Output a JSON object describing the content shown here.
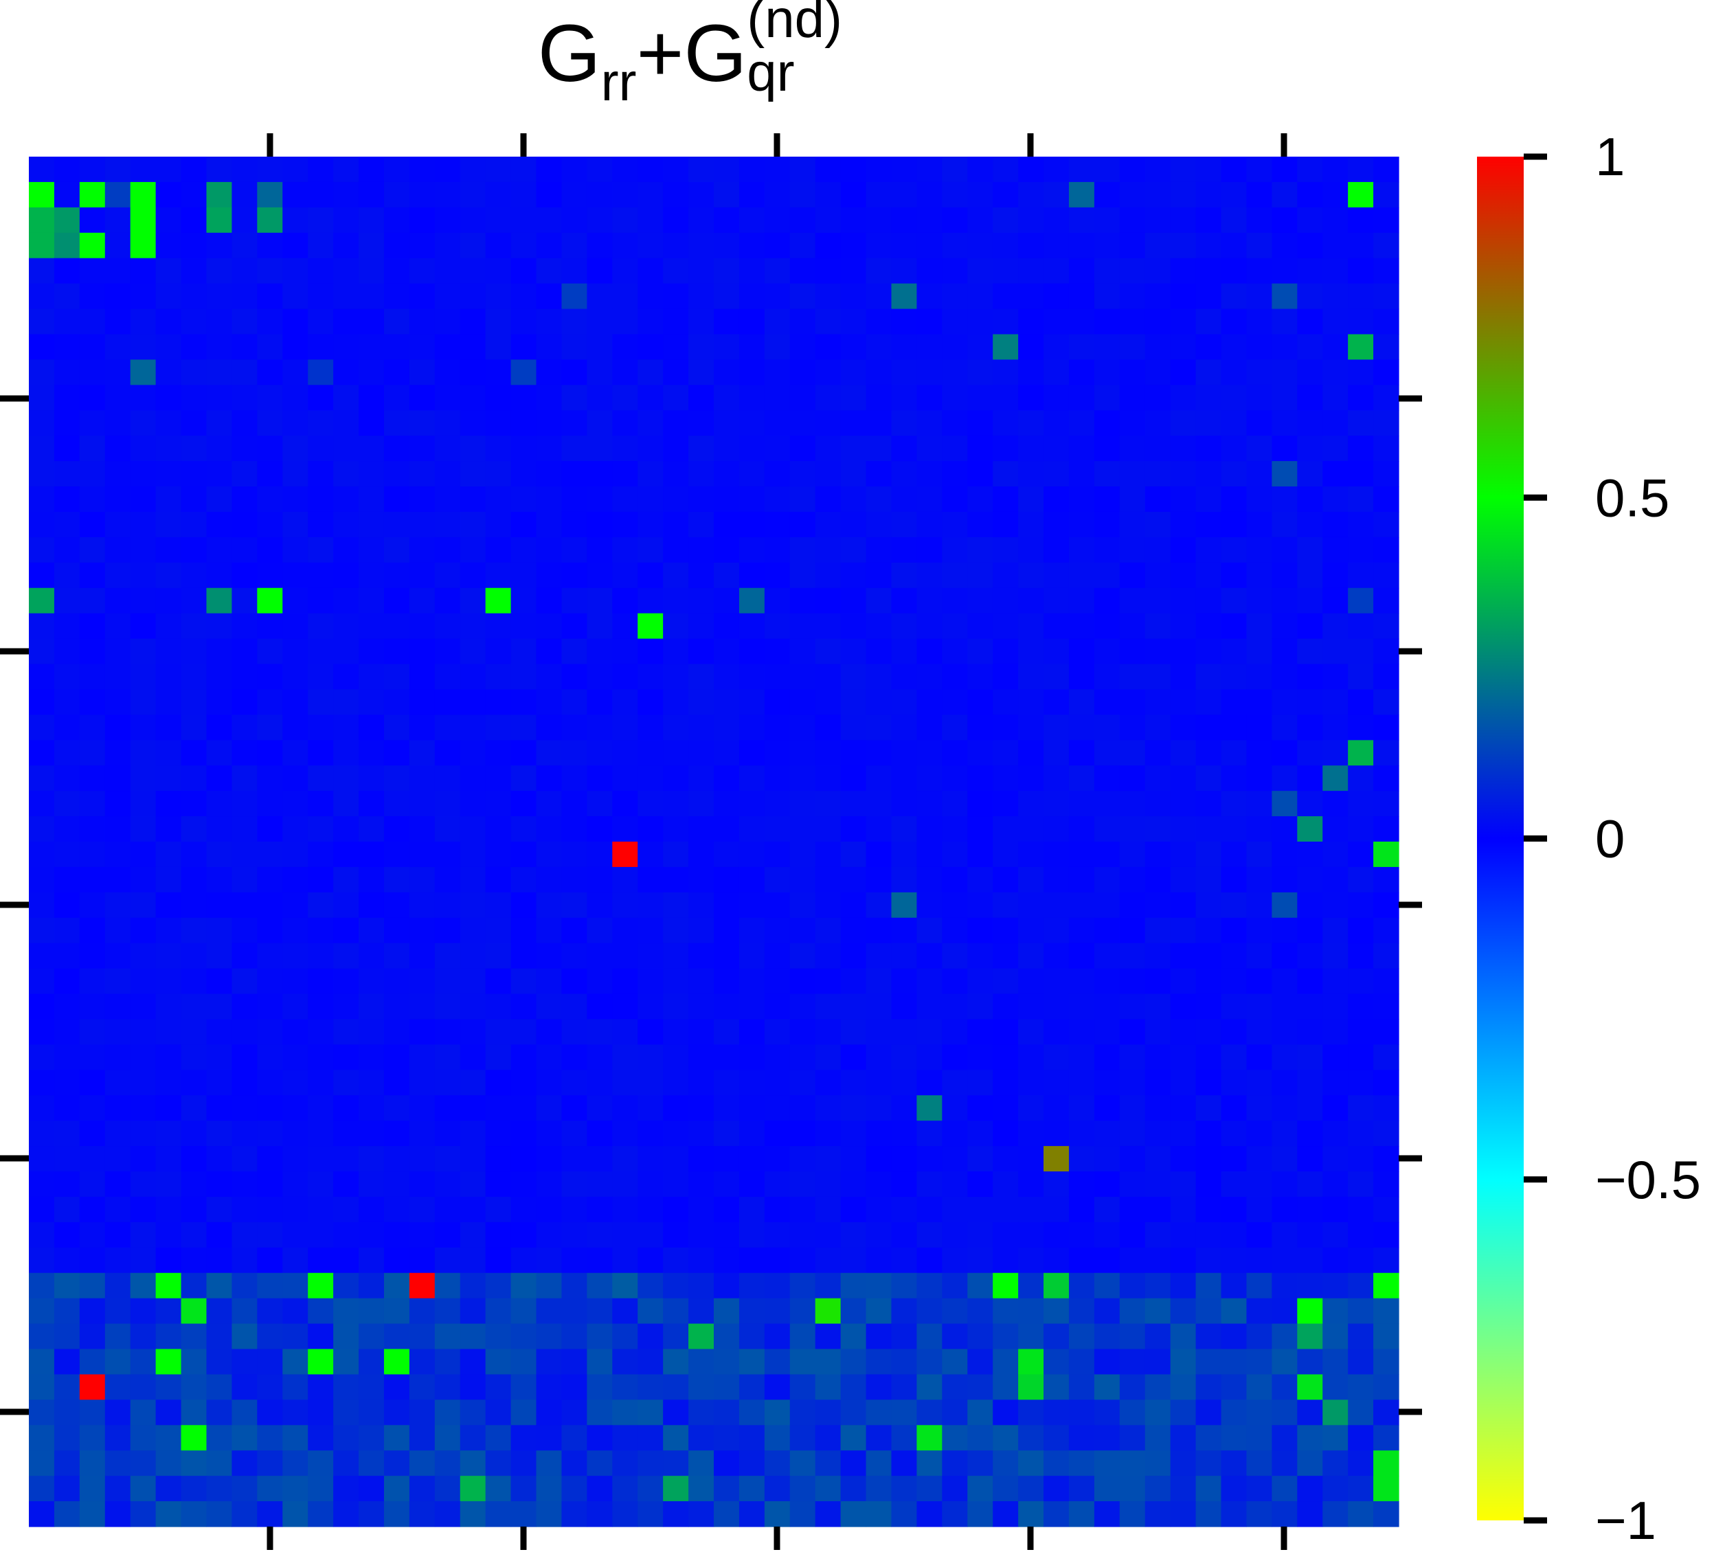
{
  "title": {
    "main_1": "G",
    "sub_1": "rr",
    "plus": "+",
    "main_2": "G",
    "sup_2": "(nd)",
    "sub_2": "qr"
  },
  "chart_data": {
    "type": "heatmap",
    "title": "G_rr+G_qr^(nd)",
    "rows": 54,
    "cols": 54,
    "base_value": 0.0,
    "colormap": [
      "#ffff00",
      "#00ffff",
      "#0000ff",
      "#00ff00",
      "#ff0000"
    ],
    "colorbar": {
      "range": [
        -1,
        1
      ],
      "ticks": [
        1,
        0.5,
        0,
        -0.5,
        -1
      ],
      "tick_labels": [
        "1",
        "0.5",
        "0",
        "−0.5",
        "−1"
      ]
    },
    "highlighted_cells": [
      {
        "r": 1,
        "c": 0,
        "v": 0.5
      },
      {
        "r": 1,
        "c": 2,
        "v": 0.5
      },
      {
        "r": 1,
        "c": 3,
        "v": 0.12
      },
      {
        "r": 1,
        "c": 4,
        "v": 0.5
      },
      {
        "r": 1,
        "c": 7,
        "v": 0.3
      },
      {
        "r": 1,
        "c": 9,
        "v": 0.2
      },
      {
        "r": 1,
        "c": 52,
        "v": 0.5
      },
      {
        "r": 1,
        "c": 41,
        "v": 0.2
      },
      {
        "r": 2,
        "c": 0,
        "v": 0.35
      },
      {
        "r": 2,
        "c": 1,
        "v": 0.3
      },
      {
        "r": 2,
        "c": 4,
        "v": 0.5
      },
      {
        "r": 2,
        "c": 7,
        "v": 0.32
      },
      {
        "r": 2,
        "c": 9,
        "v": 0.3
      },
      {
        "r": 3,
        "c": 0,
        "v": 0.35
      },
      {
        "r": 3,
        "c": 1,
        "v": 0.28
      },
      {
        "r": 3,
        "c": 2,
        "v": 0.5
      },
      {
        "r": 3,
        "c": 4,
        "v": 0.5
      },
      {
        "r": 5,
        "c": 21,
        "v": 0.12
      },
      {
        "r": 5,
        "c": 34,
        "v": 0.22
      },
      {
        "r": 5,
        "c": 49,
        "v": 0.15
      },
      {
        "r": 7,
        "c": 38,
        "v": 0.25
      },
      {
        "r": 7,
        "c": 52,
        "v": 0.35
      },
      {
        "r": 8,
        "c": 4,
        "v": 0.2
      },
      {
        "r": 8,
        "c": 11,
        "v": 0.1
      },
      {
        "r": 8,
        "c": 19,
        "v": 0.12
      },
      {
        "r": 12,
        "c": 49,
        "v": 0.15
      },
      {
        "r": 17,
        "c": 0,
        "v": 0.32
      },
      {
        "r": 17,
        "c": 7,
        "v": 0.28
      },
      {
        "r": 17,
        "c": 9,
        "v": 0.5
      },
      {
        "r": 17,
        "c": 18,
        "v": 0.5
      },
      {
        "r": 17,
        "c": 28,
        "v": 0.2
      },
      {
        "r": 17,
        "c": 52,
        "v": 0.12
      },
      {
        "r": 18,
        "c": 24,
        "v": 0.5
      },
      {
        "r": 23,
        "c": 52,
        "v": 0.35
      },
      {
        "r": 24,
        "c": 51,
        "v": 0.22
      },
      {
        "r": 25,
        "c": 49,
        "v": 0.15
      },
      {
        "r": 26,
        "c": 50,
        "v": 0.28
      },
      {
        "r": 27,
        "c": 23,
        "v": 1.0
      },
      {
        "r": 27,
        "c": 53,
        "v": 0.45
      },
      {
        "r": 29,
        "c": 34,
        "v": 0.2
      },
      {
        "r": 29,
        "c": 49,
        "v": 0.15
      },
      {
        "r": 37,
        "c": 35,
        "v": 0.25
      },
      {
        "r": 39,
        "c": 40,
        "v": 0.75
      },
      {
        "r": 44,
        "c": 5,
        "v": 0.5
      },
      {
        "r": 44,
        "c": 11,
        "v": 0.5
      },
      {
        "r": 44,
        "c": 15,
        "v": 1.0
      },
      {
        "r": 44,
        "c": 38,
        "v": 0.5
      },
      {
        "r": 44,
        "c": 40,
        "v": 0.4
      },
      {
        "r": 44,
        "c": 53,
        "v": 0.5
      },
      {
        "r": 44,
        "c": 23,
        "v": 0.18
      },
      {
        "r": 45,
        "c": 6,
        "v": 0.45
      },
      {
        "r": 45,
        "c": 31,
        "v": 0.55
      },
      {
        "r": 45,
        "c": 50,
        "v": 0.5
      },
      {
        "r": 46,
        "c": 26,
        "v": 0.35
      },
      {
        "r": 46,
        "c": 50,
        "v": 0.32
      },
      {
        "r": 47,
        "c": 5,
        "v": 0.5
      },
      {
        "r": 47,
        "c": 11,
        "v": 0.5
      },
      {
        "r": 47,
        "c": 14,
        "v": 0.5
      },
      {
        "r": 47,
        "c": 39,
        "v": 0.45
      },
      {
        "r": 48,
        "c": 2,
        "v": 1.0
      },
      {
        "r": 48,
        "c": 39,
        "v": 0.42
      },
      {
        "r": 48,
        "c": 50,
        "v": 0.45
      },
      {
        "r": 49,
        "c": 51,
        "v": 0.3
      },
      {
        "r": 50,
        "c": 6,
        "v": 0.5
      },
      {
        "r": 50,
        "c": 35,
        "v": 0.45
      },
      {
        "r": 51,
        "c": 53,
        "v": 0.45
      },
      {
        "r": 52,
        "c": 17,
        "v": 0.35
      },
      {
        "r": 52,
        "c": 25,
        "v": 0.32
      },
      {
        "r": 52,
        "c": 53,
        "v": 0.45
      }
    ]
  }
}
